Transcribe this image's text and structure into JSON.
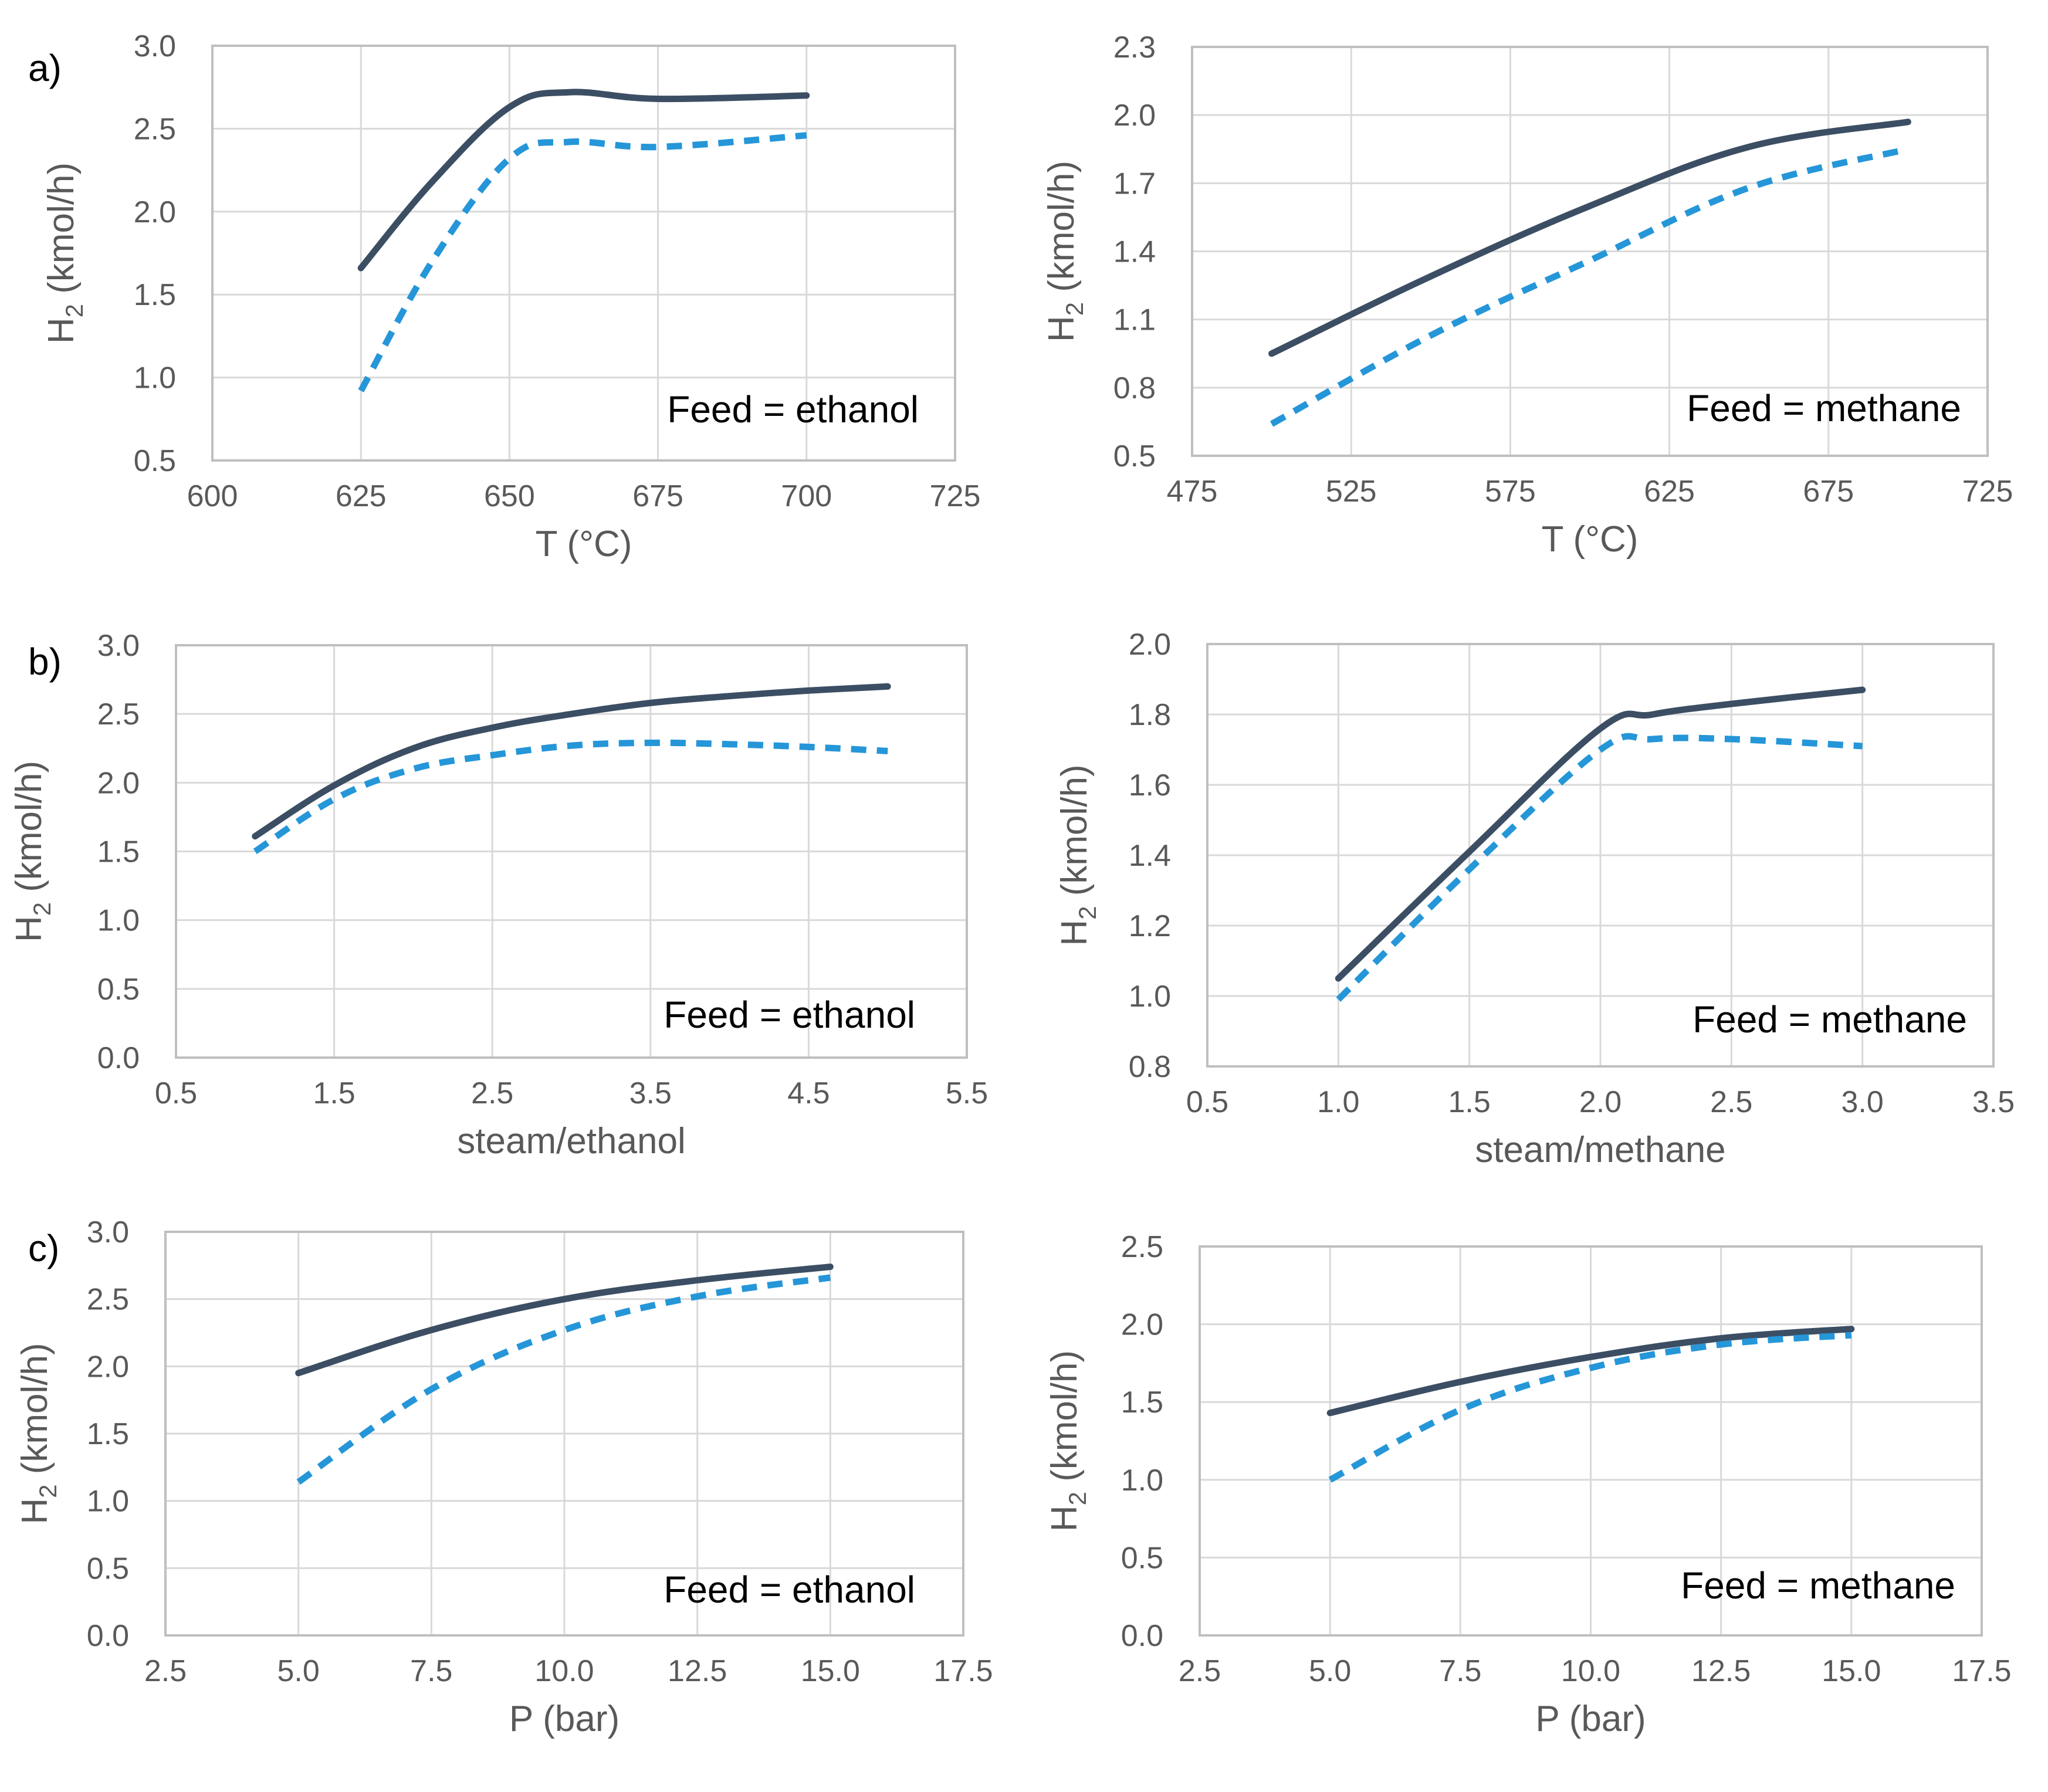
{
  "colors": {
    "solid": "#3c4e63",
    "dashed": "#2596d8",
    "grid": "#d9d9d9",
    "axis": "#bfbfbf",
    "text": "#595959"
  },
  "chart_data": [
    {
      "id": "a-ethanol",
      "type": "line",
      "panel_label": "a)",
      "annotation": "Feed = ethanol",
      "xlabel": "T (°C)",
      "ylabel_main": "H",
      "ylabel_sub": "2",
      "ylabel_rest": " (kmol/h)",
      "xlim": [
        600,
        725
      ],
      "ylim": [
        0.5,
        3.0
      ],
      "xticks": [
        600,
        625,
        650,
        675,
        700,
        725
      ],
      "xtick_labels": [
        "600",
        "625",
        "650",
        "675",
        "700",
        "725"
      ],
      "yticks": [
        0.5,
        1.0,
        1.5,
        2.0,
        2.5,
        3.0
      ],
      "ytick_labels": [
        "0.5",
        "1.0",
        "1.5",
        "2.0",
        "2.5",
        "3.0"
      ],
      "series": [
        {
          "style": "solid",
          "x": [
            625,
            637,
            650,
            660,
            675,
            700
          ],
          "y": [
            1.66,
            2.18,
            2.63,
            2.72,
            2.68,
            2.7
          ]
        },
        {
          "style": "dashed",
          "x": [
            625,
            637,
            650,
            660,
            675,
            700
          ],
          "y": [
            0.92,
            1.7,
            2.32,
            2.42,
            2.39,
            2.46
          ]
        }
      ]
    },
    {
      "id": "a-methane",
      "type": "line",
      "panel_label": "",
      "annotation": "Feed = methane",
      "xlabel": "T (°C)",
      "ylabel_main": "H",
      "ylabel_sub": "2",
      "ylabel_rest": " (kmol/h)",
      "xlim": [
        475,
        725
      ],
      "ylim": [
        0.5,
        2.3
      ],
      "xticks": [
        475,
        525,
        575,
        625,
        675,
        725
      ],
      "xtick_labels": [
        "475",
        "525",
        "575",
        "625",
        "675",
        "725"
      ],
      "yticks": [
        0.5,
        0.8,
        1.1,
        1.4,
        1.7,
        2.0,
        2.3
      ],
      "ytick_labels": [
        "0.5",
        "0.8",
        "1.1",
        "1.4",
        "1.7",
        "2.0",
        "2.3"
      ],
      "series": [
        {
          "style": "solid",
          "x": [
            500,
            550,
            600,
            650,
            700
          ],
          "y": [
            0.95,
            1.29,
            1.6,
            1.86,
            1.97
          ]
        },
        {
          "style": "dashed",
          "x": [
            500,
            550,
            600,
            650,
            700
          ],
          "y": [
            0.64,
            1.03,
            1.36,
            1.68,
            1.85
          ]
        }
      ]
    },
    {
      "id": "b-ethanol",
      "type": "line",
      "panel_label": "b)",
      "annotation": "Feed = ethanol",
      "xlabel": "steam/ethanol",
      "ylabel_main": "H",
      "ylabel_sub": "2",
      "ylabel_rest": " (kmol/h)",
      "xlim": [
        0.5,
        5.5
      ],
      "ylim": [
        0.0,
        3.0
      ],
      "xticks": [
        0.5,
        1.5,
        2.5,
        3.5,
        4.5,
        5.5
      ],
      "xtick_labels": [
        "0.5",
        "1.5",
        "2.5",
        "3.5",
        "4.5",
        "5.5"
      ],
      "yticks": [
        0.0,
        0.5,
        1.0,
        1.5,
        2.0,
        2.5,
        3.0
      ],
      "ytick_labels": [
        "0.0",
        "0.5",
        "1.0",
        "1.5",
        "2.0",
        "2.5",
        "3.0"
      ],
      "series": [
        {
          "style": "solid",
          "x": [
            1.0,
            1.5,
            2.0,
            2.5,
            3.0,
            3.5,
            4.0,
            4.5,
            5.0
          ],
          "y": [
            1.61,
            1.98,
            2.25,
            2.4,
            2.5,
            2.58,
            2.63,
            2.67,
            2.7
          ]
        },
        {
          "style": "dashed",
          "x": [
            1.0,
            1.5,
            2.0,
            2.5,
            3.0,
            3.5,
            4.0,
            4.5,
            5.0
          ],
          "y": [
            1.5,
            1.88,
            2.1,
            2.2,
            2.27,
            2.29,
            2.28,
            2.26,
            2.23
          ]
        }
      ]
    },
    {
      "id": "b-methane",
      "type": "line",
      "panel_label": "",
      "annotation": "Feed = methane",
      "xlabel": "steam/methane",
      "ylabel_main": "H",
      "ylabel_sub": "2",
      "ylabel_rest": " (kmol/h)",
      "xlim": [
        0.5,
        3.5
      ],
      "ylim": [
        0.8,
        2.0
      ],
      "xticks": [
        0.5,
        1.0,
        1.5,
        2.0,
        2.5,
        3.0,
        3.5
      ],
      "xtick_labels": [
        "0.5",
        "1.0",
        "1.5",
        "2.0",
        "2.5",
        "3.0",
        "3.5"
      ],
      "yticks": [
        0.8,
        1.0,
        1.2,
        1.4,
        1.6,
        1.8,
        2.0
      ],
      "ytick_labels": [
        "0.8",
        "1.0",
        "1.2",
        "1.4",
        "1.6",
        "1.8",
        "2.0"
      ],
      "series": [
        {
          "style": "solid",
          "x": [
            1.0,
            1.5,
            2.0,
            2.2,
            2.5,
            3.0
          ],
          "y": [
            1.05,
            1.41,
            1.76,
            1.8,
            1.83,
            1.87
          ]
        },
        {
          "style": "dashed",
          "x": [
            1.0,
            1.5,
            2.0,
            2.2,
            2.5,
            3.0
          ],
          "y": [
            0.99,
            1.36,
            1.7,
            1.73,
            1.73,
            1.71
          ]
        }
      ]
    },
    {
      "id": "c-ethanol",
      "type": "line",
      "panel_label": "c)",
      "annotation": "Feed = ethanol",
      "xlabel": "P (bar)",
      "ylabel_main": "H",
      "ylabel_sub": "2",
      "ylabel_rest": " (kmol/h)",
      "xlim": [
        2.5,
        17.5
      ],
      "ylim": [
        0.0,
        3.0
      ],
      "xticks": [
        2.5,
        5.0,
        7.5,
        10.0,
        12.5,
        15.0,
        17.5
      ],
      "xtick_labels": [
        "2.5",
        "5.0",
        "7.5",
        "10.0",
        "12.5",
        "15.0",
        "17.5"
      ],
      "yticks": [
        0.0,
        0.5,
        1.0,
        1.5,
        2.0,
        2.5,
        3.0
      ],
      "ytick_labels": [
        "0.0",
        "0.5",
        "1.0",
        "1.5",
        "2.0",
        "2.5",
        "3.0"
      ],
      "series": [
        {
          "style": "solid",
          "x": [
            5,
            7.5,
            10,
            12.5,
            15
          ],
          "y": [
            1.95,
            2.27,
            2.5,
            2.64,
            2.74
          ]
        },
        {
          "style": "dashed",
          "x": [
            5,
            7.5,
            10,
            12.5,
            15
          ],
          "y": [
            1.14,
            1.83,
            2.27,
            2.52,
            2.66
          ]
        }
      ]
    },
    {
      "id": "c-methane",
      "type": "line",
      "panel_label": "",
      "annotation": "Feed = methane",
      "xlabel": "P (bar)",
      "ylabel_main": "H",
      "ylabel_sub": "2",
      "ylabel_rest": " (kmol/h)",
      "xlim": [
        2.5,
        17.5
      ],
      "ylim": [
        0.0,
        2.5
      ],
      "xticks": [
        2.5,
        5.0,
        7.5,
        10.0,
        12.5,
        15.0,
        17.5
      ],
      "xtick_labels": [
        "2.5",
        "5.0",
        "7.5",
        "10.0",
        "12.5",
        "15.0",
        "17.5"
      ],
      "yticks": [
        0.0,
        0.5,
        1.0,
        1.5,
        2.0,
        2.5
      ],
      "ytick_labels": [
        "0.0",
        "0.5",
        "1.0",
        "1.5",
        "2.0",
        "2.5"
      ],
      "series": [
        {
          "style": "solid",
          "x": [
            5,
            7.5,
            10,
            12.5,
            15
          ],
          "y": [
            1.43,
            1.63,
            1.79,
            1.91,
            1.97
          ]
        },
        {
          "style": "dashed",
          "x": [
            5,
            7.5,
            10,
            12.5,
            15
          ],
          "y": [
            1.0,
            1.45,
            1.72,
            1.87,
            1.93
          ]
        }
      ]
    }
  ]
}
